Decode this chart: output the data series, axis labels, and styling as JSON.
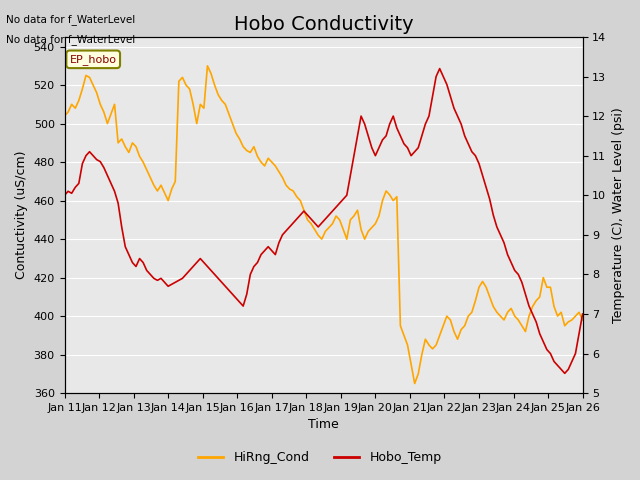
{
  "title": "Hobo Conductivity",
  "xlabel": "Time",
  "ylabel_left": "Contuctivity (uS/cm)",
  "ylabel_right": "Temperature (C), Water Level (psi)",
  "ylim_left": [
    360,
    545
  ],
  "ylim_right": [
    5.0,
    14.0
  ],
  "yticks_left": [
    360,
    380,
    400,
    420,
    440,
    460,
    480,
    500,
    520,
    540
  ],
  "yticks_right": [
    5.0,
    6.0,
    7.0,
    8.0,
    9.0,
    10.0,
    11.0,
    12.0,
    13.0,
    14.0
  ],
  "xtick_labels": [
    "Jan 11",
    "Jan 12",
    "Jan 13",
    "Jan 14",
    "Jan 15",
    "Jan 16",
    "Jan 17",
    "Jan 18",
    "Jan 19",
    "Jan 20",
    "Jan 21",
    "Jan 22",
    "Jan 23",
    "Jan 24",
    "Jan 25",
    "Jan 26"
  ],
  "no_data_text1": "No data for f_WaterLevel",
  "no_data_text2": "No data for f_WaterLevel",
  "station_label": "EP_hobo",
  "legend_entries": [
    "HiRng_Cond",
    "Hobo_Temp"
  ],
  "line_colors": [
    "#FFA500",
    "#CC0000"
  ],
  "background_color": "#DCDCDC",
  "plot_bg_color": "#E8E8E8",
  "title_fontsize": 14,
  "label_fontsize": 9,
  "tick_fontsize": 8,
  "cond_data_x": [
    0,
    0.1,
    0.2,
    0.3,
    0.4,
    0.5,
    0.6,
    0.7,
    0.8,
    0.9,
    1.0,
    1.1,
    1.2,
    1.3,
    1.4,
    1.5,
    1.6,
    1.7,
    1.8,
    1.9,
    2.0,
    2.1,
    2.2,
    2.3,
    2.4,
    2.5,
    2.6,
    2.7,
    2.8,
    2.9,
    3.0,
    3.1,
    3.2,
    3.3,
    3.4,
    3.5,
    3.6,
    3.7,
    3.8,
    3.9,
    4.0,
    4.1,
    4.2,
    4.3,
    4.4,
    4.5,
    4.6,
    4.7,
    4.8,
    4.9,
    5.0,
    5.1,
    5.2,
    5.3,
    5.4,
    5.5,
    5.6,
    5.7,
    5.8,
    5.9,
    6.0,
    6.1,
    6.2,
    6.3,
    6.4,
    6.5,
    6.6,
    6.7,
    6.8,
    6.9,
    7.0,
    7.1,
    7.2,
    7.3,
    7.4,
    7.5,
    7.6,
    7.7,
    7.8,
    7.9,
    8.0,
    8.1,
    8.2,
    8.3,
    8.4,
    8.5,
    8.6,
    8.7,
    8.8,
    8.9,
    9.0,
    9.1,
    9.2,
    9.3,
    9.4,
    9.5,
    9.6,
    9.7,
    9.8,
    9.9,
    10.0,
    10.1,
    10.2,
    10.3,
    10.4,
    10.5,
    10.6,
    10.7,
    10.8,
    10.9,
    11.0,
    11.1,
    11.2,
    11.3,
    11.4,
    11.5,
    11.6,
    11.7,
    11.8,
    11.9,
    12.0,
    12.1,
    12.2,
    12.3,
    12.4,
    12.5,
    12.6,
    12.7,
    12.8,
    12.9,
    13.0,
    13.1,
    13.2,
    13.3,
    13.4,
    13.5,
    13.6,
    13.7,
    13.8,
    13.9,
    14.0,
    14.1,
    14.2,
    14.3,
    14.4,
    14.5
  ],
  "cond_data_y": [
    504,
    506,
    510,
    508,
    512,
    518,
    525,
    524,
    520,
    516,
    510,
    506,
    500,
    505,
    510,
    490,
    492,
    488,
    485,
    490,
    488,
    483,
    480,
    476,
    472,
    468,
    465,
    468,
    464,
    460,
    466,
    470,
    522,
    524,
    520,
    518,
    510,
    500,
    510,
    508,
    530,
    526,
    520,
    515,
    512,
    510,
    505,
    500,
    495,
    492,
    488,
    486,
    485,
    488,
    483,
    480,
    478,
    482,
    480,
    478,
    475,
    472,
    468,
    466,
    465,
    462,
    460,
    455,
    450,
    448,
    445,
    442,
    440,
    444,
    446,
    448,
    452,
    450,
    445,
    440,
    450,
    452,
    455,
    445,
    440,
    444,
    446,
    448,
    452,
    460,
    465,
    463,
    460,
    462,
    395,
    390,
    385,
    375,
    365,
    370,
    380,
    388,
    385,
    383,
    385,
    390,
    395,
    400,
    398,
    392,
    388,
    393,
    395,
    400,
    402,
    408,
    415,
    418,
    415,
    410,
    405,
    402,
    400,
    398,
    402,
    404,
    400,
    398,
    395,
    392,
    400,
    405,
    408,
    410,
    420,
    415,
    415,
    405,
    400,
    402,
    395,
    397,
    398,
    400,
    402,
    398
  ],
  "temp_data_x": [
    0,
    0.1,
    0.2,
    0.3,
    0.4,
    0.5,
    0.6,
    0.7,
    0.8,
    0.9,
    1.0,
    1.1,
    1.2,
    1.3,
    1.4,
    1.5,
    1.6,
    1.7,
    1.8,
    1.9,
    2.0,
    2.1,
    2.2,
    2.3,
    2.4,
    2.5,
    2.6,
    2.7,
    2.8,
    2.9,
    3.0,
    3.1,
    3.2,
    3.3,
    3.4,
    3.5,
    3.6,
    3.7,
    3.8,
    3.9,
    4.0,
    4.1,
    4.2,
    4.3,
    4.4,
    4.5,
    4.6,
    4.7,
    4.8,
    4.9,
    5.0,
    5.1,
    5.2,
    5.3,
    5.4,
    5.5,
    5.6,
    5.7,
    5.8,
    5.9,
    6.0,
    6.1,
    6.2,
    6.3,
    6.4,
    6.5,
    6.6,
    6.7,
    6.8,
    6.9,
    7.0,
    7.1,
    7.2,
    7.3,
    7.4,
    7.5,
    7.6,
    7.7,
    7.8,
    7.9,
    8.0,
    8.1,
    8.2,
    8.3,
    8.4,
    8.5,
    8.6,
    8.7,
    8.8,
    8.9,
    9.0,
    9.1,
    9.2,
    9.3,
    9.4,
    9.5,
    9.6,
    9.7,
    9.8,
    9.9,
    10.0,
    10.1,
    10.2,
    10.3,
    10.4,
    10.5,
    10.6,
    10.7,
    10.8,
    10.9,
    11.0,
    11.1,
    11.2,
    11.3,
    11.4,
    11.5,
    11.6,
    11.7,
    11.8,
    11.9,
    12.0,
    12.1,
    12.2,
    12.3,
    12.4,
    12.5,
    12.6,
    12.7,
    12.8,
    12.9,
    13.0,
    13.1,
    13.2,
    13.3,
    13.4,
    13.5,
    13.6,
    13.7,
    13.8,
    13.9,
    14.0,
    14.1,
    14.2,
    14.3,
    14.4,
    14.5
  ],
  "temp_data_y": [
    10.0,
    10.1,
    10.05,
    10.2,
    10.3,
    10.8,
    11.0,
    11.1,
    11.0,
    10.9,
    10.85,
    10.7,
    10.5,
    10.3,
    10.1,
    9.8,
    9.2,
    8.7,
    8.5,
    8.3,
    8.2,
    8.4,
    8.3,
    8.1,
    8.0,
    7.9,
    7.85,
    7.9,
    7.8,
    7.7,
    7.75,
    7.8,
    7.85,
    7.9,
    8.0,
    8.1,
    8.2,
    8.3,
    8.4,
    8.3,
    8.2,
    8.1,
    8.0,
    7.9,
    7.8,
    7.7,
    7.6,
    7.5,
    7.4,
    7.3,
    7.2,
    7.5,
    8.0,
    8.2,
    8.3,
    8.5,
    8.6,
    8.7,
    8.6,
    8.5,
    8.8,
    9.0,
    9.1,
    9.2,
    9.3,
    9.4,
    9.5,
    9.6,
    9.5,
    9.4,
    9.3,
    9.2,
    9.3,
    9.4,
    9.5,
    9.6,
    9.7,
    9.8,
    9.9,
    10.0,
    10.5,
    11.0,
    11.5,
    12.0,
    11.8,
    11.5,
    11.2,
    11.0,
    11.2,
    11.4,
    11.5,
    11.8,
    12.0,
    11.7,
    11.5,
    11.3,
    11.2,
    11.0,
    11.1,
    11.2,
    11.5,
    11.8,
    12.0,
    12.5,
    13.0,
    13.2,
    13.0,
    12.8,
    12.5,
    12.2,
    12.0,
    11.8,
    11.5,
    11.3,
    11.1,
    11.0,
    10.8,
    10.5,
    10.2,
    9.9,
    9.5,
    9.2,
    9.0,
    8.8,
    8.5,
    8.3,
    8.1,
    8.0,
    7.8,
    7.5,
    7.2,
    7.0,
    6.8,
    6.5,
    6.3,
    6.1,
    6.0,
    5.8,
    5.7,
    5.6,
    5.5,
    5.6,
    5.8,
    6.0,
    6.5,
    7.0
  ]
}
